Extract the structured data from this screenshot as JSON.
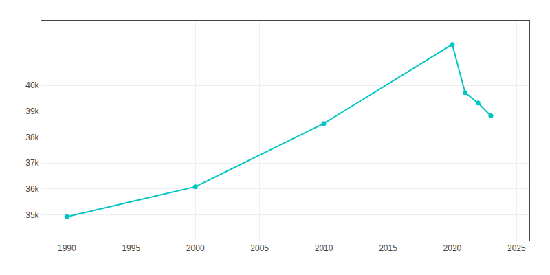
{
  "chart_data": {
    "type": "line",
    "x": [
      1990,
      2000,
      2010,
      2020,
      2021,
      2022,
      2023
    ],
    "values": [
      34923,
      36081,
      38524,
      41580,
      39720,
      39320,
      38820
    ],
    "color": "#00C5C5",
    "marker": "circle",
    "xlim": [
      1988,
      2026
    ],
    "xticks": [
      1990,
      1995,
      2000,
      2005,
      2010,
      2015,
      2020,
      2025
    ],
    "ylim": [
      34000,
      42500
    ],
    "yticks": [
      {
        "value": 35000,
        "label": "35k"
      },
      {
        "value": 36000,
        "label": "36k"
      },
      {
        "value": 37000,
        "label": "37k"
      },
      {
        "value": 38000,
        "label": "38k"
      },
      {
        "value": 39000,
        "label": "39k"
      },
      {
        "value": 40000,
        "label": "40k"
      }
    ],
    "grid": true
  }
}
